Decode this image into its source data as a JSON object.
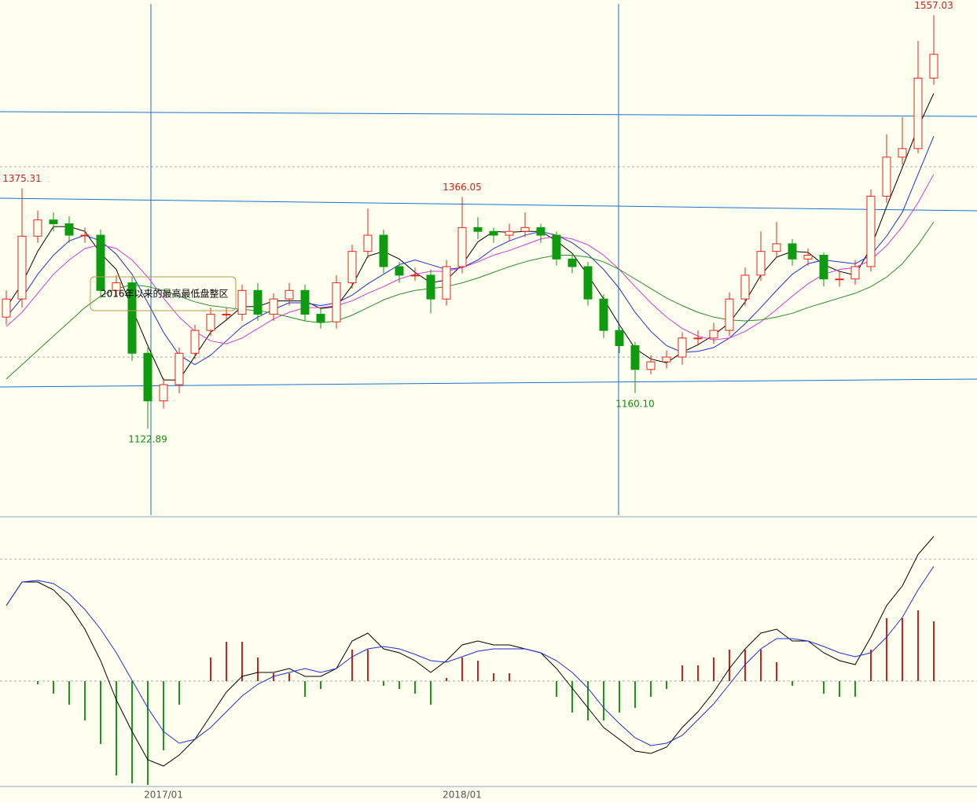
{
  "chart_data": [
    {
      "type": "candlestick",
      "ylim": [
        1032,
        1573
      ],
      "up_color": "#e8231b",
      "down_color": "#0f9b0f",
      "categories": [
        null,
        null,
        null,
        null,
        null,
        null,
        null,
        null,
        null,
        null,
        "2017/01",
        null,
        null,
        null,
        null,
        null,
        null,
        null,
        null,
        null,
        null,
        null,
        null,
        null,
        null,
        null,
        null,
        null,
        null,
        "2018/01",
        null,
        null,
        null,
        null,
        null,
        null,
        null,
        null,
        null,
        null,
        null,
        null,
        null,
        null,
        null,
        null,
        null,
        null,
        null,
        null,
        null,
        null,
        null,
        null,
        null,
        null,
        null,
        null,
        null,
        null
      ],
      "open": [
        1240,
        1259,
        1325,
        1342,
        1338,
        1326,
        1326,
        1268,
        1276,
        1202,
        1152,
        1169,
        1202,
        1226,
        1243,
        1243,
        1268,
        1243,
        1259,
        1268,
        1243,
        1235,
        1276,
        1309,
        1326,
        1293,
        1284,
        1284,
        1259,
        1293,
        1334,
        1330,
        1326,
        1330,
        1334,
        1326,
        1301,
        1293,
        1259,
        1226,
        1210,
        1185,
        1193,
        1198,
        1218,
        1218,
        1226,
        1259,
        1284,
        1309,
        1317,
        1301,
        1305,
        1280,
        1280,
        1293,
        1367,
        1408,
        1417,
        1491
      ],
      "high": [
        1268,
        1375.31,
        1352,
        1350,
        1346,
        1334,
        1332,
        1284,
        1282,
        1208,
        1176,
        1208,
        1232,
        1250,
        1250,
        1274,
        1276,
        1265,
        1276,
        1274,
        1250,
        1284,
        1316,
        1354,
        1332,
        1298,
        1292,
        1290,
        1300,
        1366.05,
        1345,
        1334,
        1338,
        1350,
        1338,
        1330,
        1305,
        1298,
        1264,
        1230,
        1214,
        1200,
        1205,
        1224,
        1226,
        1234,
        1266,
        1292,
        1330,
        1340,
        1322,
        1312,
        1308,
        1288,
        1300,
        1374,
        1432,
        1450,
        1530,
        1557.03
      ],
      "low": [
        1232,
        1250,
        1318,
        1330,
        1318,
        1318,
        1260,
        1262,
        1194,
        1122.89,
        1144,
        1160,
        1196,
        1220,
        1236,
        1236,
        1236,
        1236,
        1252,
        1236,
        1228,
        1228,
        1270,
        1302,
        1286,
        1276,
        1278,
        1244,
        1252,
        1286,
        1322,
        1318,
        1320,
        1324,
        1318,
        1294,
        1286,
        1252,
        1218,
        1202,
        1160.1,
        1180,
        1186,
        1190,
        1210,
        1212,
        1220,
        1252,
        1278,
        1302,
        1294,
        1294,
        1272,
        1272,
        1274,
        1288,
        1360,
        1400,
        1412,
        1484
      ],
      "close": [
        1259,
        1325,
        1342,
        1338,
        1326,
        1326,
        1268,
        1276,
        1202,
        1152,
        1169,
        1202,
        1226,
        1243,
        1243,
        1268,
        1243,
        1259,
        1268,
        1243,
        1235,
        1276,
        1309,
        1326,
        1293,
        1284,
        1284,
        1259,
        1293,
        1334,
        1330,
        1326,
        1330,
        1334,
        1326,
        1301,
        1293,
        1259,
        1226,
        1210,
        1185,
        1193,
        1198,
        1218,
        1218,
        1226,
        1259,
        1284,
        1309,
        1317,
        1301,
        1305,
        1280,
        1280,
        1293,
        1367,
        1408,
        1417,
        1491,
        1516
      ],
      "high_labels": [
        null,
        "1375.31",
        null,
        null,
        null,
        null,
        null,
        null,
        null,
        null,
        null,
        null,
        null,
        null,
        null,
        null,
        null,
        null,
        null,
        null,
        null,
        null,
        null,
        null,
        null,
        null,
        null,
        null,
        null,
        "1366.05",
        null,
        null,
        null,
        null,
        null,
        null,
        null,
        null,
        null,
        null,
        null,
        null,
        null,
        null,
        null,
        null,
        null,
        null,
        null,
        null,
        null,
        null,
        null,
        null,
        null,
        null,
        null,
        null,
        null,
        "1557.03"
      ],
      "low_labels": [
        null,
        null,
        null,
        null,
        null,
        null,
        null,
        null,
        null,
        "1122.89",
        null,
        null,
        null,
        null,
        null,
        null,
        null,
        null,
        null,
        null,
        null,
        null,
        null,
        null,
        null,
        null,
        null,
        null,
        null,
        null,
        null,
        null,
        null,
        null,
        null,
        null,
        null,
        null,
        null,
        null,
        "1160.10",
        null,
        null,
        null,
        null,
        null,
        null,
        null,
        null,
        null,
        null,
        null,
        null,
        null,
        null,
        null,
        null,
        null,
        null,
        null
      ],
      "note": "2016年以来的最高最低盘整区",
      "series": [
        {
          "color": "#000000",
          "values": [
            1250,
            1275,
            1309,
            1335,
            1335,
            1330,
            1307,
            1290,
            1249,
            1210,
            1174,
            1174,
            1199,
            1224,
            1237,
            1251,
            1251,
            1257,
            1257,
            1257,
            1249,
            1251,
            1273,
            1304,
            1309,
            1301,
            1287,
            1276,
            1279,
            1295,
            1319,
            1330,
            1329,
            1330,
            1330,
            1320,
            1307,
            1284,
            1259,
            1232,
            1207,
            1196,
            1192,
            1203,
            1211,
            1221,
            1234,
            1256,
            1284,
            1303,
            1309,
            1308,
            1295,
            1288,
            1284,
            1313,
            1356,
            1397,
            1439,
            1475
          ]
        },
        {
          "color": "#1f2fd6",
          "values": [
            1240,
            1260,
            1285,
            1305,
            1320,
            1326,
            1320,
            1306,
            1285,
            1255,
            1224,
            1200,
            1190,
            1200,
            1215,
            1230,
            1240,
            1248,
            1255,
            1255,
            1252,
            1255,
            1263,
            1275,
            1285,
            1295,
            1300,
            1295,
            1290,
            1292,
            1300,
            1312,
            1320,
            1326,
            1330,
            1326,
            1318,
            1306,
            1290,
            1270,
            1245,
            1225,
            1210,
            1203,
            1204,
            1208,
            1218,
            1233,
            1250,
            1268,
            1285,
            1296,
            1300,
            1298,
            1296,
            1305,
            1325,
            1350,
            1390,
            1430
          ]
        },
        {
          "color": "#d23bd2",
          "values": [
            1230,
            1245,
            1265,
            1285,
            1300,
            1312,
            1316,
            1312,
            1300,
            1282,
            1260,
            1240,
            1225,
            1215,
            1212,
            1218,
            1228,
            1238,
            1245,
            1250,
            1250,
            1252,
            1257,
            1265,
            1272,
            1280,
            1285,
            1288,
            1288,
            1292,
            1298,
            1305,
            1310,
            1316,
            1322,
            1325,
            1322,
            1316,
            1305,
            1290,
            1272,
            1255,
            1240,
            1228,
            1220,
            1216,
            1218,
            1225,
            1235,
            1248,
            1262,
            1275,
            1285,
            1290,
            1292,
            1300,
            1315,
            1335,
            1360,
            1390
          ]
        },
        {
          "color": "#2e8b2e",
          "values": [
            1175,
            1190,
            1205,
            1220,
            1235,
            1250,
            1262,
            1270,
            1274,
            1272,
            1268,
            1262,
            1256,
            1252,
            1250,
            1248,
            1247,
            1244,
            1240,
            1236,
            1234,
            1236,
            1242,
            1250,
            1258,
            1264,
            1268,
            1270,
            1272,
            1276,
            1281,
            1287,
            1293,
            1298,
            1302,
            1305,
            1305,
            1303,
            1298,
            1290,
            1280,
            1270,
            1260,
            1252,
            1245,
            1240,
            1237,
            1236,
            1237,
            1240,
            1244,
            1250,
            1255,
            1260,
            1265,
            1272,
            1282,
            1296,
            1316,
            1340
          ]
        }
      ]
    },
    {
      "type": "macd",
      "ylim": [
        -33.5,
        51.5
      ],
      "series": [
        {
          "color": "#000000",
          "values": [
            24,
            31.5,
            31.5,
            29,
            24,
            16.5,
            6.5,
            -6,
            -16,
            -25,
            -27,
            -23.5,
            -18.5,
            -11,
            -3.5,
            1.5,
            2.75,
            2.75,
            4,
            1.5,
            1.5,
            4,
            12.75,
            15.25,
            10.25,
            9,
            6.5,
            2.75,
            6.5,
            11.5,
            12.75,
            11.5,
            11.5,
            10.25,
            9,
            4,
            -2.25,
            -8.5,
            -14.75,
            -18.5,
            -22.25,
            -23,
            -21,
            -14.75,
            -9.75,
            -3.5,
            4,
            10.25,
            15.25,
            16.5,
            12.75,
            12.75,
            9,
            6.5,
            5.25,
            14,
            24,
            30.25,
            40.25,
            46
          ]
        },
        {
          "color": "#1f2fd6",
          "values": [
            24,
            31.5,
            32,
            31,
            27.75,
            22.75,
            16.5,
            9,
            0.25,
            -8.5,
            -16,
            -19.75,
            -18.5,
            -14.75,
            -9.75,
            -4.75,
            -1,
            1.5,
            2.75,
            4,
            2.75,
            4,
            7.75,
            10.25,
            11,
            10.25,
            8.5,
            6.5,
            6,
            7.75,
            9.5,
            10.25,
            10.25,
            10.25,
            9,
            6.5,
            2.75,
            -2.25,
            -8.5,
            -13.5,
            -18,
            -20.5,
            -19.75,
            -17.25,
            -12.25,
            -7.25,
            -1,
            5.25,
            10.25,
            13.5,
            13.5,
            12.75,
            11,
            9,
            7.75,
            9,
            14,
            20.25,
            29,
            36.5
          ]
        }
      ],
      "histogram": [
        0,
        0,
        -1,
        -4,
        -7.5,
        -12.5,
        -20,
        -30,
        -32.5,
        -33,
        -22,
        -7.5,
        0,
        7.5,
        12.5,
        12.5,
        7.5,
        2.5,
        2.5,
        -5,
        -2.5,
        0,
        10,
        10,
        -1.5,
        -2.5,
        -4,
        -7.5,
        1,
        7.5,
        6.5,
        2.5,
        2.5,
        0,
        0,
        -5,
        -10,
        -12.5,
        -12.5,
        -10,
        -8.5,
        -5,
        -2.5,
        5,
        5,
        7.5,
        10,
        10,
        10,
        6,
        -1.5,
        0,
        -4,
        -5,
        -5,
        10,
        20,
        20,
        22.5,
        19
      ]
    }
  ]
}
